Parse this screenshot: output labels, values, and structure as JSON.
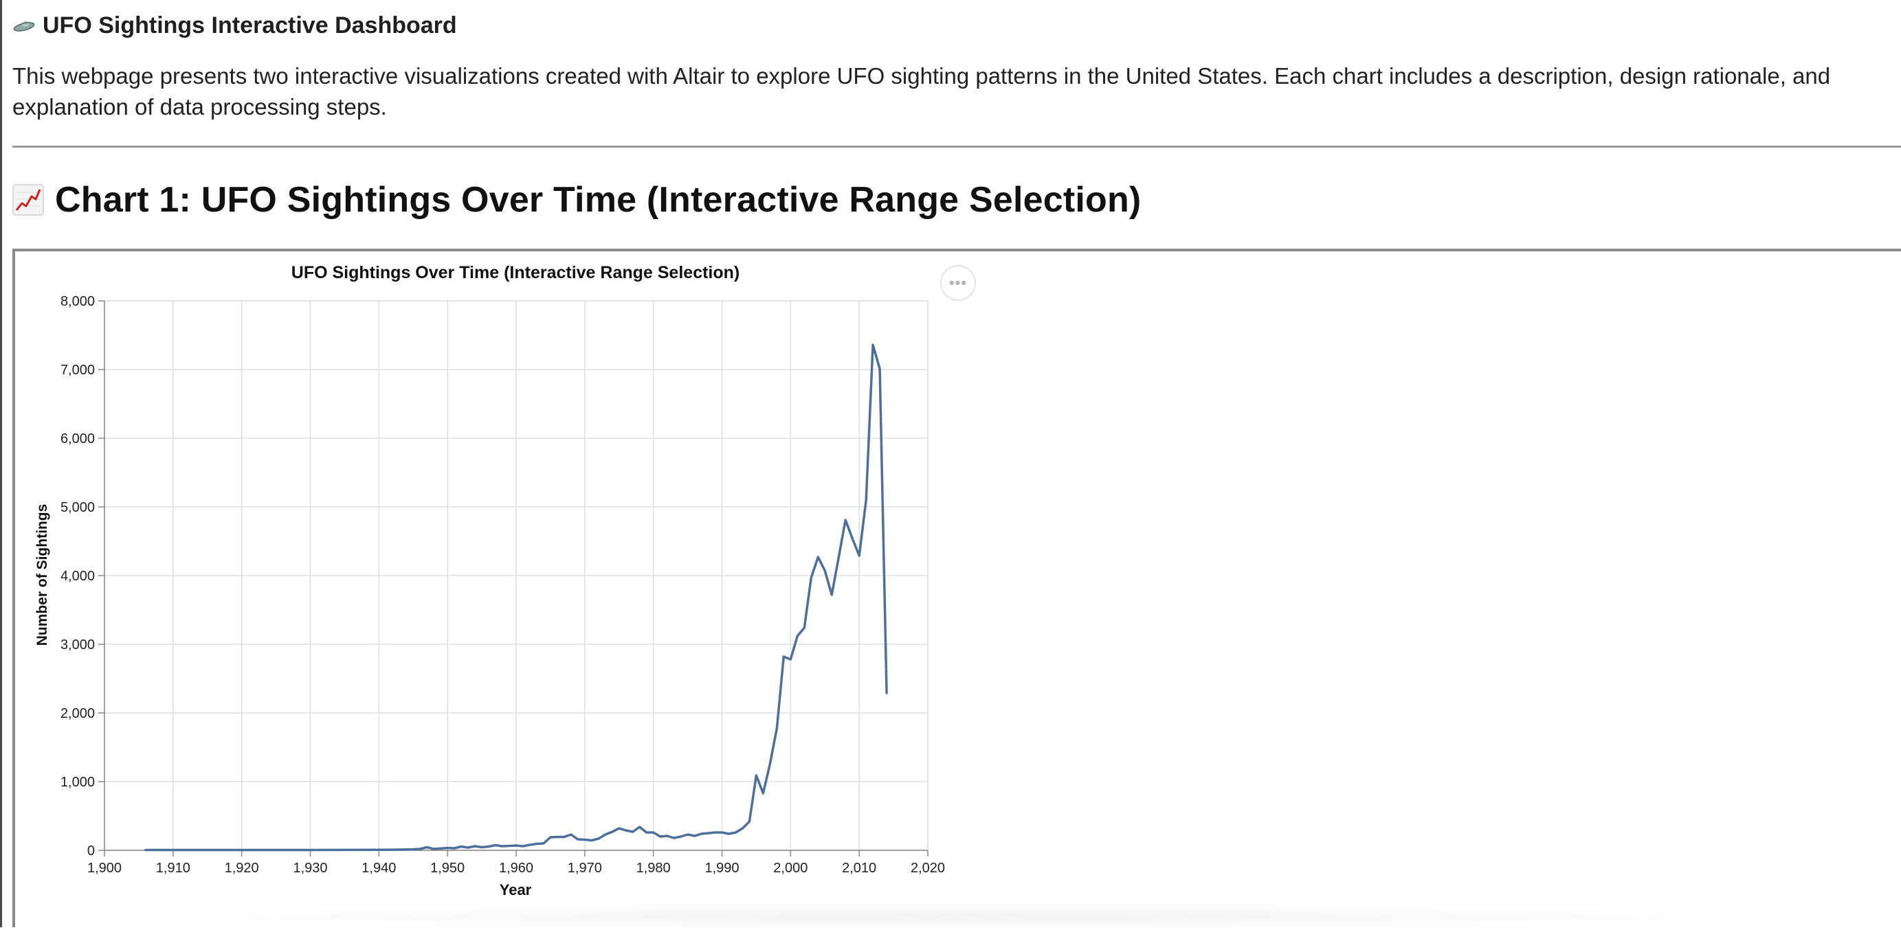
{
  "page": {
    "title": "UFO Sightings Interactive Dashboard",
    "intro": "This webpage presents two interactive visualizations created with Altair to explore UFO sighting patterns in the United States. Each chart includes a description, design rationale, and explanation of data processing steps.",
    "section_title": "Chart 1: UFO Sightings Over Time (Interactive Range Selection)",
    "title_icon": "ufo-icon",
    "section_icon": "chart-increasing-icon"
  },
  "chart_actions": {
    "label": "•••",
    "icon": "ellipsis-icon"
  },
  "chart_data": {
    "type": "line",
    "title": "UFO Sightings Over Time (Interactive Range Selection)",
    "xlabel": "Year",
    "ylabel": "Number of Sightings",
    "xlim": [
      1900,
      2020
    ],
    "ylim": [
      0,
      8000
    ],
    "x_ticks": [
      1900,
      1910,
      1920,
      1930,
      1940,
      1950,
      1960,
      1970,
      1980,
      1990,
      2000,
      2010,
      2020
    ],
    "y_ticks": [
      0,
      1000,
      2000,
      3000,
      4000,
      5000,
      6000,
      7000,
      8000
    ],
    "x_tick_labels": [
      "1,900",
      "1,910",
      "1,920",
      "1,930",
      "1,940",
      "1,950",
      "1,960",
      "1,970",
      "1,980",
      "1,990",
      "2,000",
      "2,010",
      "2,020"
    ],
    "y_tick_labels": [
      "0",
      "1,000",
      "2,000",
      "3,000",
      "4,000",
      "5,000",
      "6,000",
      "7,000",
      "8,000"
    ],
    "grid": true,
    "line_color": "#4c6f9c",
    "x": [
      1906,
      1910,
      1920,
      1930,
      1940,
      1943,
      1945,
      1946,
      1947,
      1948,
      1950,
      1951,
      1952,
      1953,
      1954,
      1955,
      1956,
      1957,
      1958,
      1959,
      1960,
      1961,
      1962,
      1963,
      1964,
      1965,
      1966,
      1967,
      1968,
      1969,
      1970,
      1971,
      1972,
      1973,
      1974,
      1975,
      1976,
      1977,
      1978,
      1979,
      1980,
      1981,
      1982,
      1983,
      1984,
      1985,
      1986,
      1987,
      1988,
      1989,
      1990,
      1991,
      1992,
      1993,
      1994,
      1995,
      1996,
      1997,
      1998,
      1999,
      2000,
      2001,
      2002,
      2003,
      2004,
      2005,
      2006,
      2007,
      2008,
      2009,
      2010,
      2011,
      2012,
      2013,
      2014
    ],
    "values": [
      5,
      5,
      5,
      5,
      8,
      10,
      15,
      20,
      45,
      20,
      35,
      30,
      55,
      40,
      60,
      45,
      55,
      75,
      60,
      65,
      70,
      60,
      80,
      95,
      100,
      190,
      195,
      195,
      230,
      160,
      155,
      145,
      170,
      230,
      270,
      320,
      290,
      270,
      340,
      260,
      260,
      200,
      210,
      180,
      200,
      230,
      210,
      240,
      250,
      260,
      260,
      240,
      260,
      320,
      420,
      1090,
      830,
      1260,
      1780,
      2820,
      2780,
      3120,
      3240,
      3970,
      4270,
      4070,
      3720,
      4260,
      4810,
      4540,
      4290,
      5100,
      7360,
      7010,
      2290
    ]
  }
}
